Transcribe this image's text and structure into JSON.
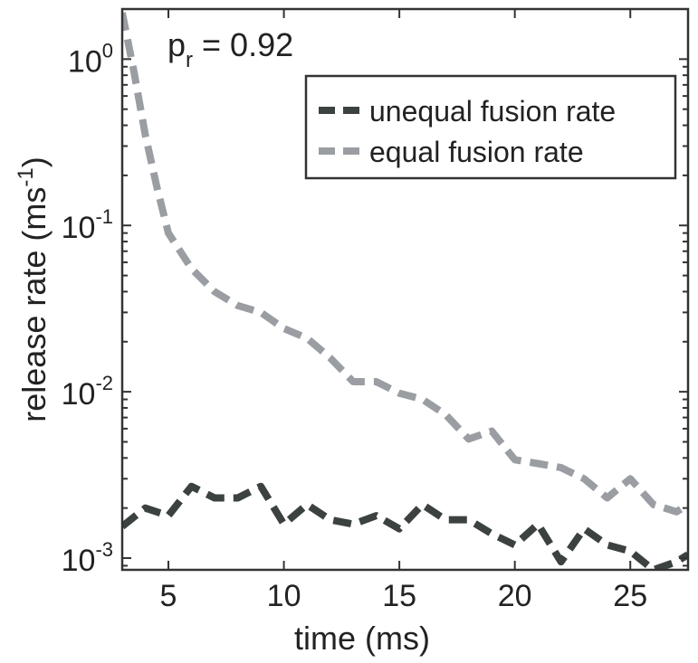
{
  "chart_data": {
    "type": "line",
    "title": "",
    "xlabel": "time (ms)",
    "ylabel": "release rate (ms-1)",
    "ylabel_text": "release rate (ms",
    "ylabel_sup": "-1",
    "ylabel_close": ")",
    "xlim": [
      3,
      27.5
    ],
    "ylim": [
      0.00085,
      2.0
    ],
    "yscale": "log",
    "xticks": [
      5,
      10,
      15,
      20,
      25
    ],
    "yticks": [
      {
        "value": 1,
        "base": "10",
        "exp": "0"
      },
      {
        "value": 0.1,
        "base": "10",
        "exp": "-1"
      },
      {
        "value": 0.01,
        "base": "10",
        "exp": "-2"
      },
      {
        "value": 0.001,
        "base": "10",
        "exp": "-3"
      }
    ],
    "grid": false,
    "legend_position": "top-right",
    "annotation": {
      "text": "p",
      "sub": "r",
      "rest": " = 0.92"
    },
    "series": [
      {
        "name": "unequal fusion rate",
        "color": "#3c423f",
        "x": [
          3,
          4,
          5,
          6,
          7,
          8,
          9,
          10,
          11,
          12,
          13,
          14,
          15,
          16,
          17,
          18,
          19,
          20,
          21,
          22,
          23,
          24,
          25,
          26,
          27,
          27.5
        ],
        "y": [
          0.00155,
          0.002,
          0.0018,
          0.0027,
          0.0023,
          0.0023,
          0.0027,
          0.0016,
          0.0021,
          0.0017,
          0.0016,
          0.0018,
          0.0015,
          0.0021,
          0.0017,
          0.0017,
          0.0014,
          0.0012,
          0.0016,
          0.00095,
          0.0015,
          0.0012,
          0.0011,
          0.00085,
          0.00095,
          0.00105
        ]
      },
      {
        "name": "equal fusion rate",
        "color": "#9a9ea2",
        "x": [
          3,
          3.5,
          4,
          4.5,
          5,
          6,
          7,
          8,
          9,
          10,
          11,
          12,
          13,
          14,
          15,
          16,
          17,
          18,
          19,
          20,
          21,
          22,
          23,
          24,
          25,
          26,
          27,
          27.5
        ],
        "y": [
          1.9,
          0.85,
          0.35,
          0.17,
          0.09,
          0.055,
          0.04,
          0.033,
          0.03,
          0.024,
          0.021,
          0.016,
          0.0115,
          0.0115,
          0.0098,
          0.009,
          0.0073,
          0.0052,
          0.0058,
          0.0039,
          0.0037,
          0.0035,
          0.003,
          0.0023,
          0.003,
          0.0021,
          0.0019,
          0.0021
        ]
      }
    ]
  }
}
